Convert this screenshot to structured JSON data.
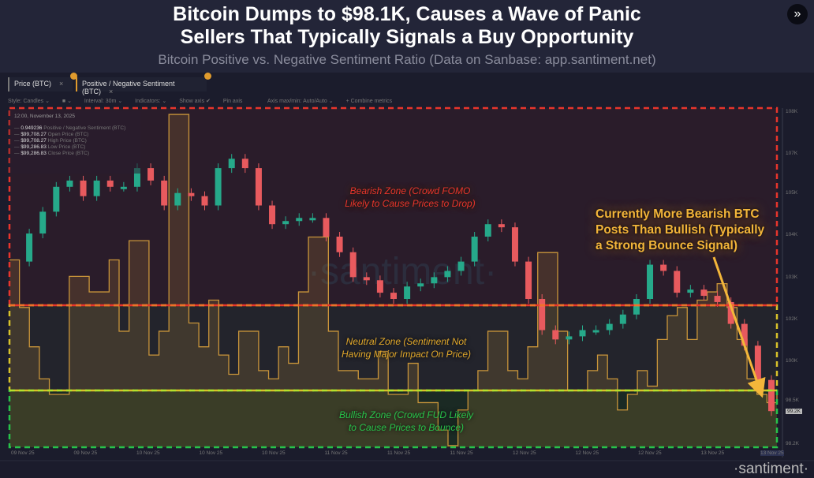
{
  "header": {
    "title_line1": "Bitcoin Dumps to $98.1K, Causes a Wave of Panic",
    "title_line2": "Sellers That Typically Signals a Buy Opportunity",
    "subtitle": "Bitcoin Positive vs. Negative Sentiment Ratio (Data on Sanbase: app.santiment.net)",
    "forward_icon": "double-chevron-right-icon"
  },
  "tabs": [
    {
      "label": "Price (BTC)",
      "close": "×"
    },
    {
      "label": "Positive / Negative Sentiment (BTC)",
      "close": "×"
    }
  ],
  "toolbar": {
    "style": "Style: Candles ⌄",
    "color": "■ ⌄",
    "interval": "Interval: 30m ⌄",
    "indicators": "Indicators: ⌄",
    "show_axis": "Show axis ✔",
    "pin_axis": "Pin axis",
    "axis_maxmin": "Axis max/min: Auto/Auto ⌄",
    "combine": "+ Combine metrics"
  },
  "tooltip": {
    "date": "12:00, November 13, 2025",
    "rows": [
      {
        "value": "0.949236",
        "label": "Positive / Negative Sentiment (BTC)"
      },
      {
        "value": "$99,708.27",
        "label": "Open Price (BTC)"
      },
      {
        "value": "$99,708.27",
        "label": "High Price (BTC)"
      },
      {
        "value": "$99,286.83",
        "label": "Low Price (BTC)"
      },
      {
        "value": "$99,286.83",
        "label": "Close Price (BTC)"
      }
    ]
  },
  "annotations": {
    "bearish_1": "Bearish Zone (Crowd FOMO",
    "bearish_2": "Likely to Cause Prices to Drop)",
    "neutral_1": "Neutral Zone (Sentiment Not",
    "neutral_2": "Having Major Impact On Price)",
    "bullish_1": "Bullish Zone (Crowd FUD Likely",
    "bullish_2": "to Cause Prices to Bounce)",
    "main_1": "Currently More Bearish BTC",
    "main_2": "Posts Than Bullish (Typically",
    "main_3": "a Strong Bounce Signal)"
  },
  "logo": "·santiment·",
  "colors": {
    "up": "#26a98a",
    "down": "#e85a5e",
    "sentiment": "#c9953a",
    "bearish": "#e8352c",
    "neutral": "#d8c22a",
    "bullish": "#27c24a",
    "arrow": "#f3b63a"
  },
  "chart_data": {
    "type": "candlestick+line",
    "y_ticks": [
      "108K",
      "107K",
      "105K",
      "104K",
      "103K",
      "102K",
      "100K",
      "98.5K",
      "98.2K"
    ],
    "current_price_label": "99.2K",
    "x_ticks": [
      "09 Nov 25",
      "09 Nov 25",
      "10 Nov 25",
      "10 Nov 25",
      "10 Nov 25",
      "11 Nov 25",
      "11 Nov 25",
      "11 Nov 25",
      "12 Nov 25",
      "12 Nov 25",
      "12 Nov 25",
      "13 Nov 25",
      "13 Nov 25"
    ],
    "price_close_k": [
      103.2,
      104.1,
      104.8,
      105.6,
      105.8,
      105.3,
      105.8,
      105.6,
      105.6,
      106.2,
      105.8,
      105.0,
      105.4,
      105.3,
      105.0,
      106.2,
      106.5,
      106.2,
      105.0,
      104.4,
      104.5,
      104.6,
      104.6,
      104.0,
      103.5,
      102.7,
      102.6,
      102.2,
      102.0,
      102.4,
      102.5,
      102.7,
      102.9,
      103.2,
      104.0,
      104.4,
      104.3,
      103.2,
      102.0,
      101.0,
      100.7,
      100.8,
      101.0,
      101.0,
      101.2,
      101.5,
      102.0,
      103.1,
      102.9,
      102.2,
      102.3,
      102.1,
      101.9,
      101.2,
      100.5,
      99.4,
      98.4
    ],
    "sentiment_ratio": [
      2.42,
      1.9,
      1.47,
      1.12,
      0.95,
      0.95,
      2.24,
      2.24,
      2.07,
      2.07,
      2.42,
      1.64,
      2.63,
      2.63,
      1.38,
      1.64,
      4.01,
      4.01,
      1.73,
      1.47,
      1.98,
      1.38,
      1.17,
      1.64,
      1.64,
      1.21,
      1.12,
      1.47,
      1.29,
      2.07,
      2.67,
      2.67,
      1.64,
      1.21,
      1.21,
      1.12,
      1.12,
      1.42,
      0.95,
      0.95,
      1.29,
      0.86,
      0.86,
      0.56,
      0.39,
      0.78,
      0.99,
      1.21,
      1.64,
      1.64,
      1.21,
      1.12,
      1.47,
      2.5,
      2.5,
      1.64,
      0.99,
      0.99,
      1.21,
      1.38,
      1.12,
      0.78,
      0.95,
      1.21,
      1.04,
      1.55,
      1.81,
      1.9,
      1.55,
      1.98,
      2.07,
      2.16,
      1.9,
      1.55,
      1.12,
      0.95,
      0.86,
      0.95
    ],
    "zones": [
      "Bearish",
      "Neutral",
      "Bullish"
    ]
  }
}
